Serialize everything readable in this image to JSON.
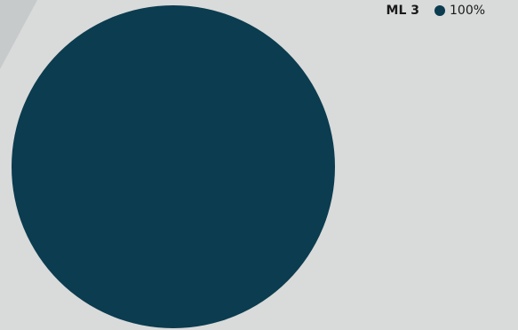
{
  "chart_data": {
    "type": "pie",
    "categories": [
      "ML 3"
    ],
    "values": [
      100
    ],
    "value_labels": [
      "100%"
    ],
    "colors": [
      "#0b3c4f"
    ]
  }
}
